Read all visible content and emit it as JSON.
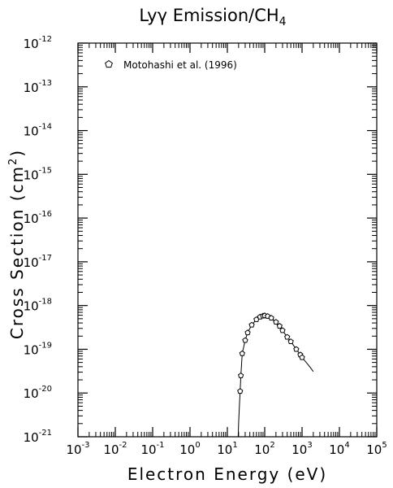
{
  "chart_data": {
    "type": "scatter",
    "title": "Lyγ Emission/CH",
    "title_subscript": "4",
    "xlabel": "Electron Energy (eV)",
    "ylabel": "Cross Section (cm",
    "ylabel_superscript": "2",
    "ylabel_close": ")",
    "x_scale": "log",
    "y_scale": "log",
    "xlim": [
      0.001,
      100000
    ],
    "ylim": [
      1e-21,
      1e-12
    ],
    "x_ticks": [
      {
        "base": "10",
        "exp": "-3",
        "value": 0.001
      },
      {
        "base": "10",
        "exp": "-2",
        "value": 0.01
      },
      {
        "base": "10",
        "exp": "-1",
        "value": 0.1
      },
      {
        "base": "10",
        "exp": "0",
        "value": 1
      },
      {
        "base": "10",
        "exp": "1",
        "value": 10
      },
      {
        "base": "10",
        "exp": "2",
        "value": 100
      },
      {
        "base": "10",
        "exp": "3",
        "value": 1000
      },
      {
        "base": "10",
        "exp": "4",
        "value": 10000
      },
      {
        "base": "10",
        "exp": "5",
        "value": 100000
      }
    ],
    "y_ticks": [
      {
        "base": "10",
        "exp": "-21",
        "value": 1e-21
      },
      {
        "base": "10",
        "exp": "-20",
        "value": 1e-20
      },
      {
        "base": "10",
        "exp": "-19",
        "value": 1e-19
      },
      {
        "base": "10",
        "exp": "-18",
        "value": 1e-18
      },
      {
        "base": "10",
        "exp": "-17",
        "value": 1e-17
      },
      {
        "base": "10",
        "exp": "-16",
        "value": 1e-16
      },
      {
        "base": "10",
        "exp": "-15",
        "value": 1e-15
      },
      {
        "base": "10",
        "exp": "-14",
        "value": 1e-14
      },
      {
        "base": "10",
        "exp": "-13",
        "value": 1e-13
      },
      {
        "base": "10",
        "exp": "-12",
        "value": 1e-12
      }
    ],
    "grid": false,
    "legend": {
      "placement": "top-left",
      "marker": "open-pentagon"
    },
    "series": [
      {
        "name": "Motohashi et al. (1996)",
        "kind": "points",
        "marker": "open-pentagon",
        "points": [
          {
            "x": 22,
            "y": 1.1e-20
          },
          {
            "x": 23,
            "y": 2.5e-20
          },
          {
            "x": 25,
            "y": 8e-20
          },
          {
            "x": 30,
            "y": 1.6e-19
          },
          {
            "x": 35,
            "y": 2.4e-19
          },
          {
            "x": 45,
            "y": 3.6e-19
          },
          {
            "x": 60,
            "y": 4.8e-19
          },
          {
            "x": 75,
            "y": 5.5e-19
          },
          {
            "x": 90,
            "y": 5.8e-19
          },
          {
            "x": 100,
            "y": 5.9e-19
          },
          {
            "x": 120,
            "y": 5.7e-19
          },
          {
            "x": 150,
            "y": 5.2e-19
          },
          {
            "x": 200,
            "y": 4.2e-19
          },
          {
            "x": 250,
            "y": 3.4e-19
          },
          {
            "x": 300,
            "y": 2.7e-19
          },
          {
            "x": 400,
            "y": 1.9e-19
          },
          {
            "x": 500,
            "y": 1.5e-19
          },
          {
            "x": 700,
            "y": 1e-19
          },
          {
            "x": 900,
            "y": 7.5e-20
          },
          {
            "x": 1000,
            "y": 6.5e-20
          }
        ]
      },
      {
        "name": "",
        "kind": "line",
        "points": [
          {
            "x": 19.5,
            "y": 1e-21
          },
          {
            "x": 20,
            "y": 2e-21
          },
          {
            "x": 21,
            "y": 5e-21
          },
          {
            "x": 22,
            "y": 1.1e-20
          },
          {
            "x": 23,
            "y": 2.5e-20
          },
          {
            "x": 25,
            "y": 8e-20
          },
          {
            "x": 30,
            "y": 1.6e-19
          },
          {
            "x": 35,
            "y": 2.4e-19
          },
          {
            "x": 45,
            "y": 3.6e-19
          },
          {
            "x": 60,
            "y": 4.8e-19
          },
          {
            "x": 75,
            "y": 5.5e-19
          },
          {
            "x": 90,
            "y": 5.8e-19
          },
          {
            "x": 100,
            "y": 5.9e-19
          },
          {
            "x": 120,
            "y": 5.7e-19
          },
          {
            "x": 150,
            "y": 5.2e-19
          },
          {
            "x": 200,
            "y": 4.2e-19
          },
          {
            "x": 250,
            "y": 3.4e-19
          },
          {
            "x": 300,
            "y": 2.7e-19
          },
          {
            "x": 400,
            "y": 1.9e-19
          },
          {
            "x": 500,
            "y": 1.5e-19
          },
          {
            "x": 700,
            "y": 1e-19
          },
          {
            "x": 900,
            "y": 7.5e-20
          },
          {
            "x": 1000,
            "y": 6.5e-20
          },
          {
            "x": 1500,
            "y": 4.3e-20
          },
          {
            "x": 2000,
            "y": 3.1e-20
          }
        ]
      }
    ]
  }
}
